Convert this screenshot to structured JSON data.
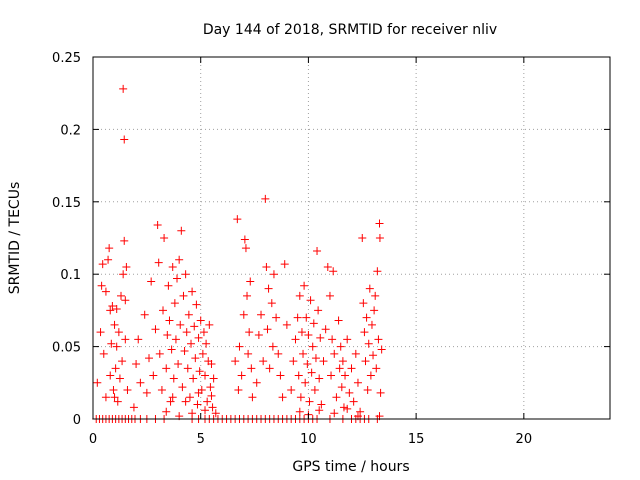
{
  "chart_data": {
    "type": "scatter",
    "title": "Day 144 of 2018, SRMTID for receiver nliv",
    "xlabel": "GPS time / hours",
    "ylabel": "SRMTID / TECUs",
    "xlim": [
      0,
      24
    ],
    "ylim": [
      0,
      0.25
    ],
    "xticks": [
      0,
      5,
      10,
      15,
      20
    ],
    "xtick_labels": [
      "0",
      "5",
      "10",
      "15",
      "20"
    ],
    "yticks": [
      0,
      0.05,
      0.1,
      0.15,
      0.2,
      0.25
    ],
    "ytick_labels": [
      "0",
      "0.05",
      "0.1",
      "0.15",
      "0.2",
      "0.25"
    ],
    "grid": true,
    "marker": "plus",
    "color": "#ff0000",
    "series": [
      {
        "name": "SRMTID",
        "points": [
          [
            0.15,
            0
          ],
          [
            0.3,
            0
          ],
          [
            0.45,
            0
          ],
          [
            0.6,
            0
          ],
          [
            0.75,
            0
          ],
          [
            0.9,
            0
          ],
          [
            1.05,
            0
          ],
          [
            1.2,
            0
          ],
          [
            1.35,
            0
          ],
          [
            1.5,
            0
          ],
          [
            1.65,
            0
          ],
          [
            1.8,
            0
          ],
          [
            1.95,
            0
          ],
          [
            2.2,
            0
          ],
          [
            2.5,
            0
          ],
          [
            2.9,
            0
          ],
          [
            3.3,
            0
          ],
          [
            4.6,
            0
          ],
          [
            4.9,
            0
          ],
          [
            5.2,
            0
          ],
          [
            5.4,
            0
          ],
          [
            5.6,
            0
          ],
          [
            5.8,
            0
          ],
          [
            6.0,
            0
          ],
          [
            6.2,
            0
          ],
          [
            6.4,
            0
          ],
          [
            6.6,
            0
          ],
          [
            6.8,
            0
          ],
          [
            7.0,
            0
          ],
          [
            7.2,
            0
          ],
          [
            7.4,
            0
          ],
          [
            7.6,
            0
          ],
          [
            7.8,
            0
          ],
          [
            8.0,
            0
          ],
          [
            8.2,
            0
          ],
          [
            8.4,
            0
          ],
          [
            8.6,
            0
          ],
          [
            8.8,
            0
          ],
          [
            9.0,
            0
          ],
          [
            9.2,
            0
          ],
          [
            9.4,
            0
          ],
          [
            9.6,
            0
          ],
          [
            9.8,
            0
          ],
          [
            10.0,
            0
          ],
          [
            10.2,
            0
          ],
          [
            10.4,
            0
          ],
          [
            11.0,
            0
          ],
          [
            11.6,
            0
          ],
          [
            12.0,
            0
          ],
          [
            12.2,
            0
          ],
          [
            12.4,
            0
          ],
          [
            12.6,
            0
          ],
          [
            12.8,
            0
          ],
          [
            13.2,
            0
          ],
          [
            0.2,
            0.025
          ],
          [
            0.35,
            0.06
          ],
          [
            0.4,
            0.092
          ],
          [
            0.45,
            0.107
          ],
          [
            0.5,
            0.045
          ],
          [
            0.6,
            0.015
          ],
          [
            0.6,
            0.088
          ],
          [
            0.7,
            0.11
          ],
          [
            0.75,
            0.118
          ],
          [
            0.8,
            0.075
          ],
          [
            0.8,
            0.03
          ],
          [
            0.85,
            0.052
          ],
          [
            0.9,
            0.078
          ],
          [
            0.95,
            0.02
          ],
          [
            1.0,
            0.015
          ],
          [
            1.0,
            0.065
          ],
          [
            1.05,
            0.035
          ],
          [
            1.1,
            0.076
          ],
          [
            1.1,
            0.05
          ],
          [
            1.15,
            0.012
          ],
          [
            1.2,
            0.06
          ],
          [
            1.25,
            0.028
          ],
          [
            1.3,
            0.085
          ],
          [
            1.35,
            0.04
          ],
          [
            1.4,
            0.1
          ],
          [
            1.45,
            0.123
          ],
          [
            1.5,
            0.082
          ],
          [
            1.5,
            0.055
          ],
          [
            1.55,
            0.105
          ],
          [
            1.6,
            0.02
          ],
          [
            1.4,
            0.228
          ],
          [
            1.45,
            0.193
          ],
          [
            1.9,
            0.008
          ],
          [
            2.0,
            0.038
          ],
          [
            2.1,
            0.055
          ],
          [
            2.2,
            0.025
          ],
          [
            2.4,
            0.072
          ],
          [
            2.5,
            0.018
          ],
          [
            2.6,
            0.042
          ],
          [
            2.7,
            0.095
          ],
          [
            2.8,
            0.03
          ],
          [
            2.9,
            0.062
          ],
          [
            3.0,
            0.134
          ],
          [
            3.05,
            0.108
          ],
          [
            3.1,
            0.045
          ],
          [
            3.2,
            0.02
          ],
          [
            3.25,
            0.075
          ],
          [
            3.3,
            0.125
          ],
          [
            3.4,
            0.035
          ],
          [
            3.45,
            0.058
          ],
          [
            3.5,
            0.092
          ],
          [
            3.55,
            0.068
          ],
          [
            3.6,
            0.012
          ],
          [
            3.65,
            0.048
          ],
          [
            3.7,
            0.105
          ],
          [
            3.75,
            0.028
          ],
          [
            3.8,
            0.08
          ],
          [
            3.85,
            0.055
          ],
          [
            3.9,
            0.097
          ],
          [
            3.95,
            0.038
          ],
          [
            4.0,
            0.11
          ],
          [
            4.05,
            0.065
          ],
          [
            4.1,
            0.13
          ],
          [
            4.15,
            0.022
          ],
          [
            4.2,
            0.085
          ],
          [
            4.25,
            0.047
          ],
          [
            4.3,
            0.1
          ],
          [
            4.35,
            0.06
          ],
          [
            4.4,
            0.035
          ],
          [
            4.45,
            0.072
          ],
          [
            4.5,
            0.015
          ],
          [
            4.55,
            0.052
          ],
          [
            4.6,
            0.088
          ],
          [
            4.65,
            0.028
          ],
          [
            4.7,
            0.064
          ],
          [
            4.75,
            0.042
          ],
          [
            4.8,
            0.079
          ],
          [
            4.85,
            0.01
          ],
          [
            4.9,
            0.056
          ],
          [
            4.95,
            0.033
          ],
          [
            5.0,
            0.068
          ],
          [
            5.05,
            0.02
          ],
          [
            5.1,
            0.045
          ],
          [
            5.15,
            0.06
          ],
          [
            5.2,
            0.03
          ],
          [
            5.25,
            0.052
          ],
          [
            5.3,
            0.012
          ],
          [
            5.35,
            0.04
          ],
          [
            5.4,
            0.065
          ],
          [
            5.45,
            0.022
          ],
          [
            5.5,
            0.038
          ],
          [
            5.55,
            0.008
          ],
          [
            5.6,
            0.028
          ],
          [
            3.4,
            0.005
          ],
          [
            3.7,
            0.015
          ],
          [
            4.0,
            0.002
          ],
          [
            4.3,
            0.012
          ],
          [
            4.6,
            0.004
          ],
          [
            4.9,
            0.018
          ],
          [
            5.2,
            0.006
          ],
          [
            5.5,
            0.016
          ],
          [
            5.7,
            0.004
          ],
          [
            6.6,
            0.04
          ],
          [
            6.7,
            0.138
          ],
          [
            6.75,
            0.02
          ],
          [
            6.8,
            0.05
          ],
          [
            6.9,
            0.03
          ],
          [
            7.0,
            0.072
          ],
          [
            7.05,
            0.124
          ],
          [
            7.1,
            0.118
          ],
          [
            7.15,
            0.085
          ],
          [
            7.2,
            0.045
          ],
          [
            7.25,
            0.06
          ],
          [
            7.3,
            0.095
          ],
          [
            7.35,
            0.035
          ],
          [
            7.4,
            0.015
          ],
          [
            7.6,
            0.025
          ],
          [
            7.7,
            0.058
          ],
          [
            7.8,
            0.072
          ],
          [
            7.9,
            0.04
          ],
          [
            8.0,
            0.152
          ],
          [
            8.05,
            0.105
          ],
          [
            8.1,
            0.062
          ],
          [
            8.15,
            0.09
          ],
          [
            8.2,
            0.035
          ],
          [
            8.3,
            0.08
          ],
          [
            8.35,
            0.05
          ],
          [
            8.4,
            0.1
          ],
          [
            8.5,
            0.07
          ],
          [
            8.6,
            0.045
          ],
          [
            8.7,
            0.03
          ],
          [
            8.8,
            0.015
          ],
          [
            8.9,
            0.107
          ],
          [
            9.0,
            0.065
          ],
          [
            9.2,
            0.02
          ],
          [
            9.3,
            0.04
          ],
          [
            9.4,
            0.055
          ],
          [
            9.5,
            0.07
          ],
          [
            9.55,
            0.03
          ],
          [
            9.6,
            0.085
          ],
          [
            9.65,
            0.015
          ],
          [
            9.7,
            0.06
          ],
          [
            9.75,
            0.045
          ],
          [
            9.8,
            0.092
          ],
          [
            9.85,
            0.025
          ],
          [
            9.9,
            0.07
          ],
          [
            9.95,
            0.038
          ],
          [
            10.0,
            0.058
          ],
          [
            10.05,
            0.012
          ],
          [
            10.1,
            0.082
          ],
          [
            10.15,
            0.032
          ],
          [
            10.2,
            0.05
          ],
          [
            10.25,
            0.066
          ],
          [
            10.3,
            0.02
          ],
          [
            10.35,
            0.042
          ],
          [
            10.4,
            0.116
          ],
          [
            10.45,
            0.075
          ],
          [
            10.5,
            0.028
          ],
          [
            10.55,
            0.056
          ],
          [
            10.6,
            0.01
          ],
          [
            10.7,
            0.04
          ],
          [
            10.8,
            0.062
          ],
          [
            10.9,
            0.105
          ],
          [
            11.0,
            0.085
          ],
          [
            11.05,
            0.03
          ],
          [
            11.1,
            0.055
          ],
          [
            11.15,
            0.102
          ],
          [
            11.2,
            0.045
          ],
          [
            11.3,
            0.015
          ],
          [
            11.4,
            0.068
          ],
          [
            11.45,
            0.035
          ],
          [
            11.5,
            0.05
          ],
          [
            11.55,
            0.022
          ],
          [
            11.6,
            0.04
          ],
          [
            11.65,
            0.008
          ],
          [
            11.7,
            0.03
          ],
          [
            11.8,
            0.055
          ],
          [
            11.9,
            0.018
          ],
          [
            12.0,
            0.035
          ],
          [
            12.1,
            0.012
          ],
          [
            12.2,
            0.045
          ],
          [
            12.3,
            0.025
          ],
          [
            12.4,
            0.005
          ],
          [
            12.5,
            0.125
          ],
          [
            12.55,
            0.08
          ],
          [
            12.6,
            0.06
          ],
          [
            12.65,
            0.04
          ],
          [
            12.7,
            0.07
          ],
          [
            12.75,
            0.02
          ],
          [
            12.8,
            0.052
          ],
          [
            12.85,
            0.09
          ],
          [
            12.9,
            0.03
          ],
          [
            12.95,
            0.065
          ],
          [
            13.0,
            0.044
          ],
          [
            13.05,
            0.075
          ],
          [
            13.1,
            0.085
          ],
          [
            13.15,
            0.035
          ],
          [
            13.2,
            0.102
          ],
          [
            13.25,
            0.055
          ],
          [
            13.3,
            0.135
          ],
          [
            13.32,
            0.125
          ],
          [
            13.35,
            0.018
          ],
          [
            13.4,
            0.048
          ],
          [
            9.6,
            0.005
          ],
          [
            10.0,
            0.003
          ],
          [
            10.5,
            0.006
          ],
          [
            11.2,
            0.004
          ],
          [
            11.8,
            0.007
          ],
          [
            12.3,
            0.002
          ],
          [
            13.3,
            0.002
          ]
        ]
      }
    ]
  }
}
